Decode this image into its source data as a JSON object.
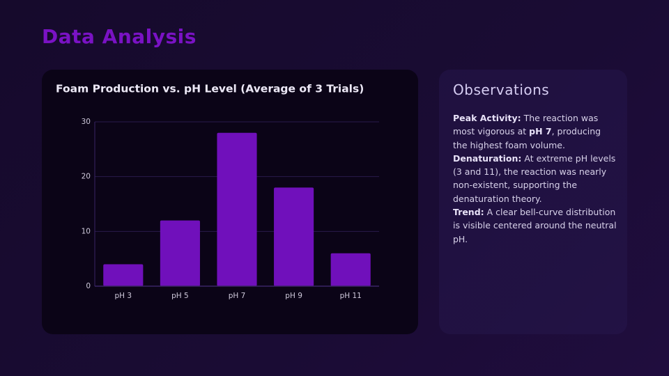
{
  "header": {
    "title": "Data Analysis"
  },
  "chart_data": {
    "type": "bar",
    "title": "Foam Production vs. pH Level (Average of 3 Trials)",
    "categories": [
      "pH 3",
      "pH 5",
      "pH 7",
      "pH 9",
      "pH 11"
    ],
    "values": [
      4,
      12,
      28,
      18,
      6
    ],
    "color": "#7010bb",
    "ylim": [
      0,
      30
    ],
    "yticks": [
      0,
      10,
      20,
      30
    ],
    "grid": true
  },
  "observations": {
    "title": "Observations",
    "items": [
      {
        "label": "Peak Activity:",
        "text_before": "The reaction was most vigorous at",
        "emphasis": "pH 7",
        "text_after": ", producing the highest foam volume."
      },
      {
        "label": "Denaturation:",
        "text": "At extreme pH levels (3 and 11), the reaction was nearly non-existent, supporting the denaturation theory."
      },
      {
        "label": "Trend:",
        "text": "A clear bell-curve distribution is visible centered around the neutral pH."
      }
    ]
  }
}
